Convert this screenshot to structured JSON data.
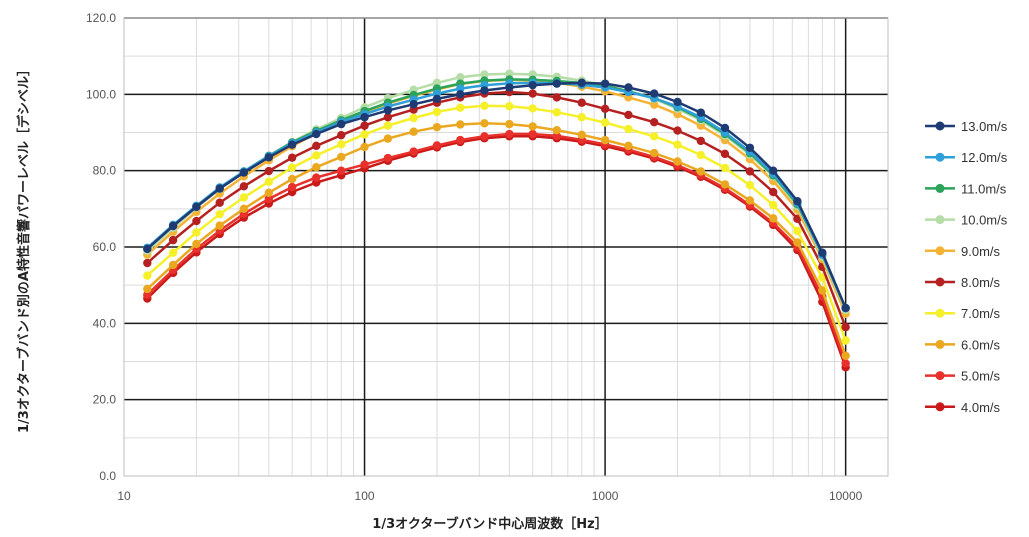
{
  "chart_data": {
    "type": "line",
    "xscale": "log",
    "xlim": [
      10,
      15000
    ],
    "ylim": [
      0,
      120
    ],
    "xticks": [
      "10",
      "100",
      "1000",
      "10000"
    ],
    "yticks": [
      "0.0",
      "20.0",
      "40.0",
      "60.0",
      "80.0",
      "100.0",
      "120.0"
    ],
    "xlabel": "1/3オクターブバンド中心周波数［Hz］",
    "ylabel": "1/3オクターブバンド別のA特性音響パワーレベル［デシベル］",
    "grid": "major and minor",
    "legend_position": "right",
    "x": [
      12.5,
      16,
      20,
      25,
      31.5,
      40,
      50,
      63,
      80,
      100,
      125,
      160,
      200,
      250,
      315,
      400,
      500,
      630,
      800,
      1000,
      1250,
      1600,
      2000,
      2500,
      3150,
      4000,
      5000,
      6300,
      8000,
      10000
    ],
    "series": [
      {
        "name": "13.0m/s",
        "color": "#1f3b73",
        "values": [
          59.5,
          65.5,
          70.5,
          75.3,
          79.5,
          83.5,
          86.8,
          89.6,
          92.2,
          94.0,
          95.8,
          97.4,
          98.8,
          100.0,
          101.0,
          101.8,
          102.4,
          102.8,
          103.0,
          102.8,
          101.8,
          100.2,
          98.0,
          95.2,
          91.2,
          86.0,
          80.0,
          72.0,
          58.5,
          44.0
        ]
      },
      {
        "name": "12.0m/s",
        "color": "#2e9fd8",
        "values": [
          59.8,
          65.8,
          70.8,
          75.6,
          79.8,
          83.8,
          87.2,
          90.0,
          92.8,
          94.8,
          96.8,
          98.6,
          100.2,
          101.5,
          102.4,
          102.9,
          103.0,
          102.9,
          102.5,
          101.8,
          100.6,
          99.0,
          96.8,
          94.0,
          90.0,
          85.0,
          79.2,
          71.5,
          58.0,
          44.0
        ]
      },
      {
        "name": "11.0m/s",
        "color": "#2ba35a",
        "values": [
          59.6,
          65.6,
          70.7,
          75.5,
          79.8,
          83.9,
          87.4,
          90.4,
          93.2,
          95.6,
          97.8,
          99.8,
          101.5,
          102.8,
          103.6,
          103.9,
          103.8,
          103.5,
          103.0,
          102.2,
          100.8,
          99.0,
          96.6,
          93.6,
          89.6,
          84.6,
          78.8,
          71.2,
          58.0,
          44.0
        ]
      },
      {
        "name": "10.0m/s",
        "color": "#b6dca8",
        "values": [
          59.0,
          65.0,
          70.3,
          75.2,
          79.6,
          83.8,
          87.5,
          90.8,
          93.8,
          96.6,
          99.0,
          101.2,
          103.0,
          104.5,
          105.2,
          105.4,
          105.2,
          104.6,
          103.6,
          102.4,
          100.8,
          98.8,
          96.2,
          93.2,
          89.2,
          84.2,
          78.5,
          70.8,
          57.5,
          43.5
        ]
      },
      {
        "name": "9.0m/s",
        "color": "#f5b335",
        "values": [
          58.0,
          64.0,
          69.2,
          74.0,
          78.5,
          82.7,
          86.4,
          89.7,
          92.6,
          95.2,
          97.6,
          99.6,
          101.3,
          102.7,
          103.5,
          103.8,
          103.6,
          103.0,
          102.0,
          100.8,
          99.2,
          97.3,
          94.8,
          91.8,
          88.0,
          83.0,
          77.3,
          69.8,
          56.8,
          42.5
        ]
      },
      {
        "name": "8.0m/s",
        "color": "#b52020",
        "values": [
          55.8,
          61.8,
          66.8,
          71.6,
          75.9,
          79.9,
          83.4,
          86.5,
          89.3,
          91.8,
          94.0,
          96.0,
          97.8,
          99.2,
          100.2,
          100.6,
          100.2,
          99.2,
          97.8,
          96.2,
          94.6,
          92.7,
          90.5,
          87.8,
          84.4,
          79.8,
          74.4,
          67.4,
          54.8,
          39.0
        ]
      },
      {
        "name": "7.0m/s",
        "color": "#f5f02a",
        "values": [
          52.5,
          58.5,
          63.8,
          68.6,
          73.0,
          77.1,
          80.8,
          84.0,
          86.9,
          89.5,
          91.8,
          93.8,
          95.4,
          96.5,
          97.0,
          96.9,
          96.3,
          95.3,
          94.0,
          92.6,
          90.9,
          89.0,
          86.8,
          84.1,
          80.7,
          76.2,
          71.0,
          64.2,
          52.0,
          35.5
        ]
      },
      {
        "name": "6.0m/s",
        "color": "#e9a820",
        "values": [
          49.0,
          55.3,
          60.8,
          65.6,
          70.0,
          74.2,
          77.8,
          80.9,
          83.6,
          86.2,
          88.4,
          90.2,
          91.4,
          92.1,
          92.4,
          92.2,
          91.6,
          90.6,
          89.4,
          88.0,
          86.5,
          84.6,
          82.4,
          79.8,
          76.4,
          72.2,
          67.5,
          61.2,
          48.6,
          31.5
        ]
      },
      {
        "name": "5.0m/s",
        "color": "#e8302c",
        "values": [
          47.5,
          54.0,
          59.5,
          64.3,
          68.7,
          72.6,
          75.7,
          78.2,
          80.0,
          81.6,
          83.3,
          85.0,
          86.6,
          88.0,
          89.0,
          89.6,
          89.6,
          89.1,
          88.1,
          86.9,
          85.5,
          83.6,
          81.4,
          78.8,
          75.4,
          71.0,
          66.3,
          60.0,
          47.0,
          29.5
        ]
      },
      {
        "name": "4.0m/s",
        "color": "#c81a18",
        "values": [
          46.5,
          53.2,
          58.6,
          63.4,
          67.7,
          71.4,
          74.4,
          76.9,
          78.8,
          80.6,
          82.6,
          84.5,
          86.1,
          87.5,
          88.5,
          89.0,
          89.0,
          88.5,
          87.6,
          86.4,
          85.0,
          83.2,
          81.0,
          78.4,
          75.0,
          70.6,
          65.8,
          59.2,
          45.6,
          28.5
        ]
      }
    ]
  }
}
